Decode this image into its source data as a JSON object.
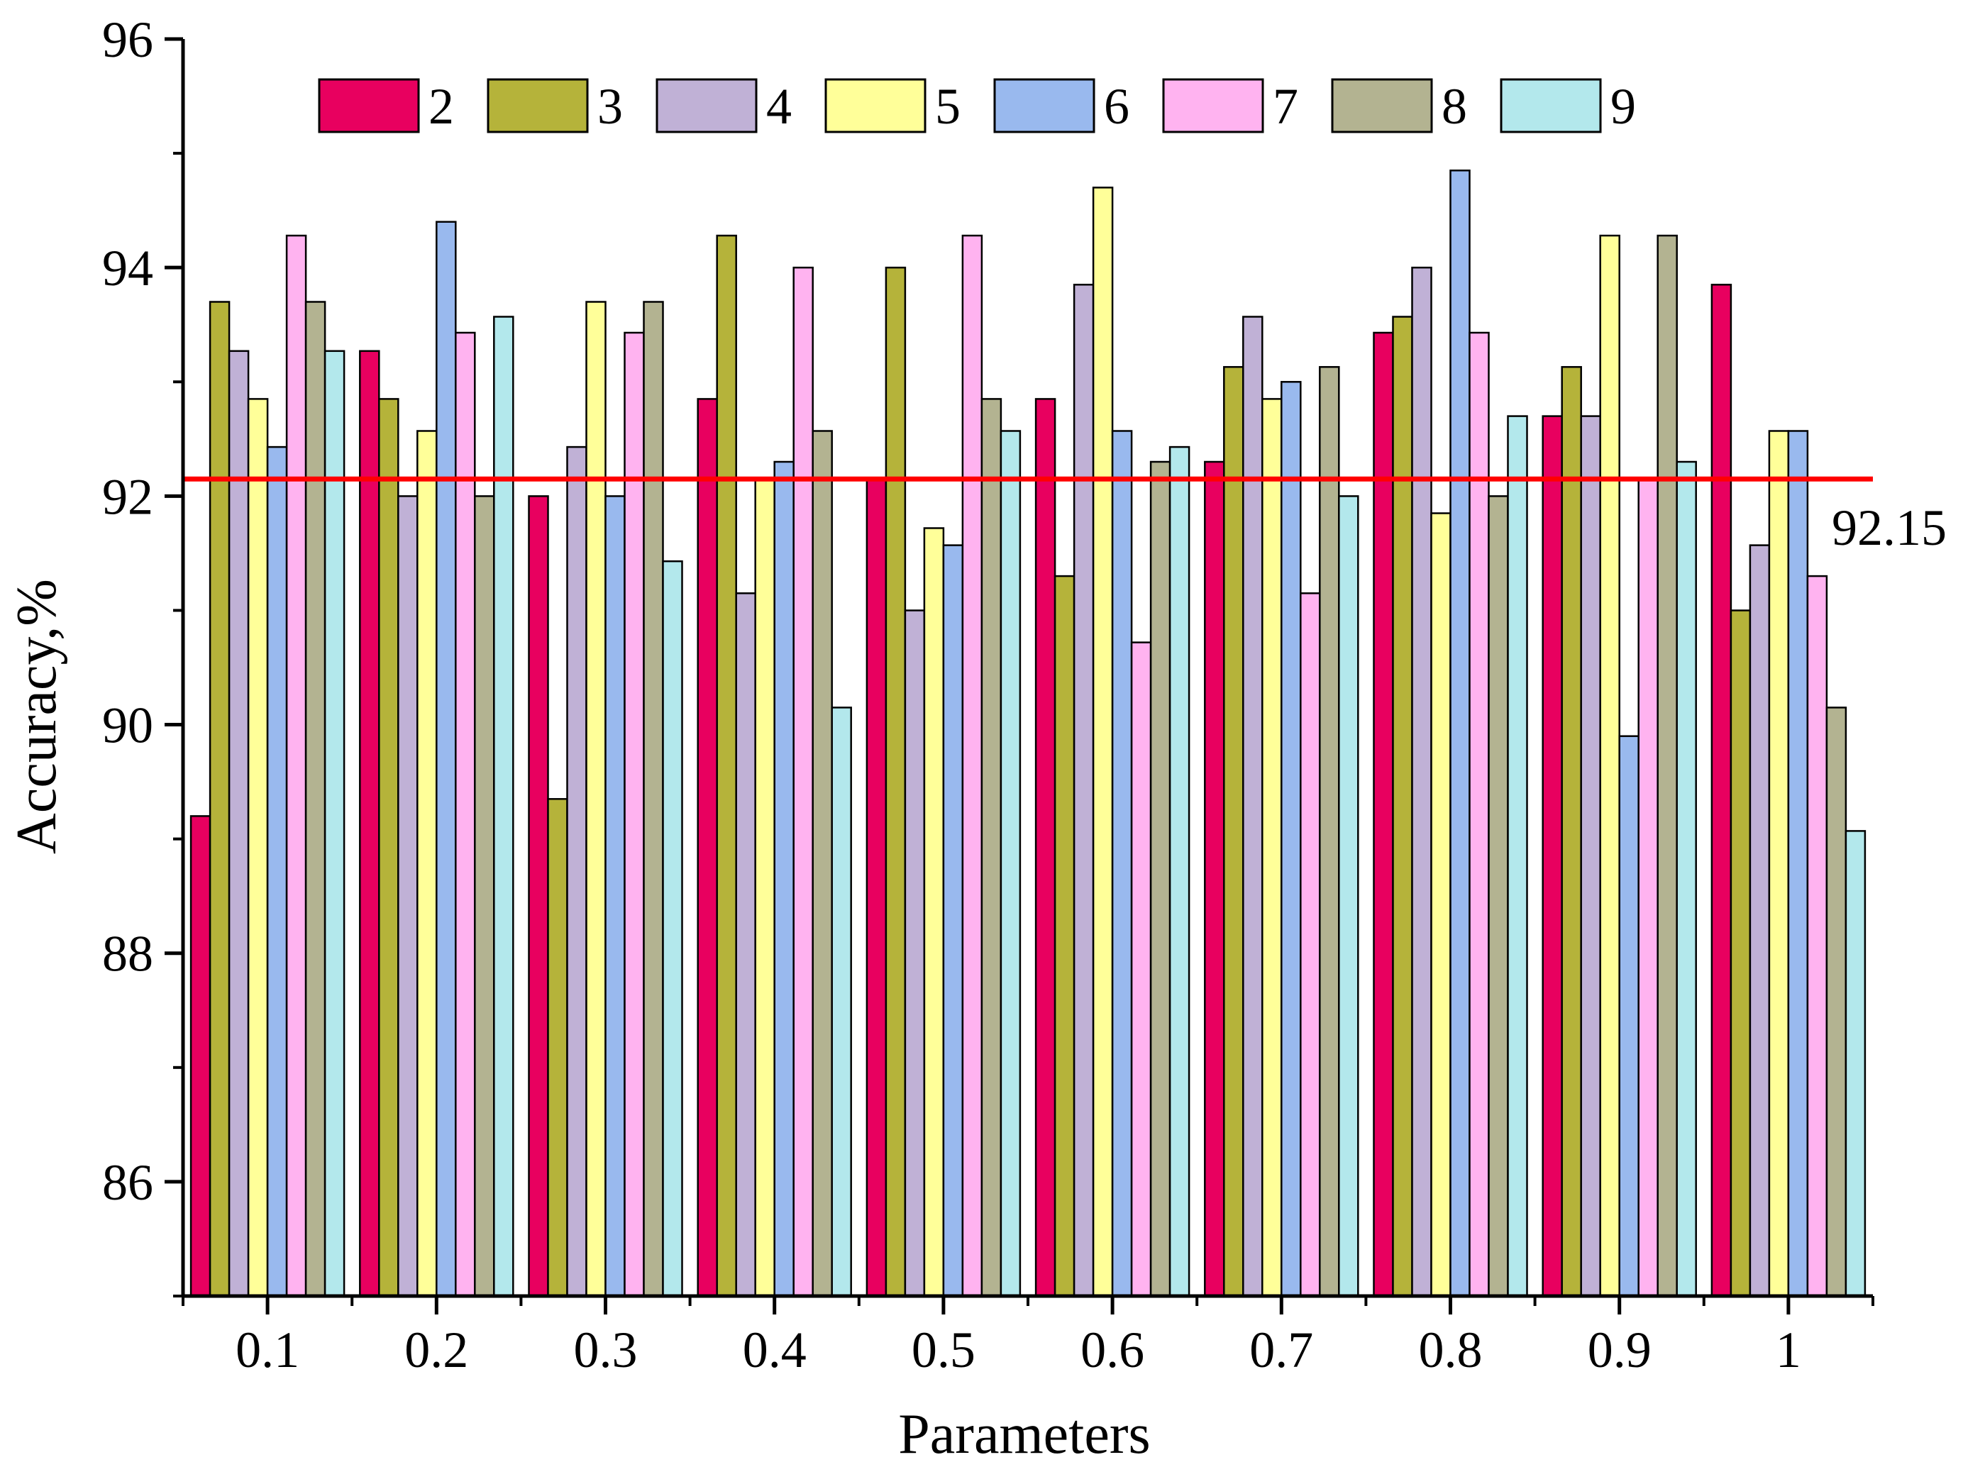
{
  "chart_data": {
    "type": "bar",
    "title": "",
    "xlabel": "Parameters",
    "ylabel": "Accuracy,%",
    "ylim": [
      85,
      96
    ],
    "yticks": [
      86,
      88,
      90,
      92,
      94,
      96
    ],
    "categories": [
      "0.1",
      "0.2",
      "0.3",
      "0.4",
      "0.5",
      "0.6",
      "0.7",
      "0.8",
      "0.9",
      "1"
    ],
    "legend_position": "top",
    "series": [
      {
        "name": "2",
        "color": "#e8005f",
        "values": [
          89.2,
          93.27,
          92.0,
          92.85,
          92.15,
          92.85,
          92.3,
          93.43,
          92.7,
          93.85
        ]
      },
      {
        "name": "3",
        "color": "#b5b33a",
        "values": [
          93.7,
          92.85,
          89.35,
          94.28,
          94.0,
          91.3,
          93.13,
          93.57,
          93.13,
          91.0
        ]
      },
      {
        "name": "4",
        "color": "#c0b1d6",
        "values": [
          93.27,
          92.0,
          92.43,
          91.15,
          91.0,
          93.85,
          93.57,
          94.0,
          92.7,
          91.57
        ]
      },
      {
        "name": "5",
        "color": "#ffff99",
        "values": [
          92.85,
          92.57,
          93.7,
          92.15,
          91.72,
          94.7,
          92.85,
          91.85,
          94.28,
          92.57
        ]
      },
      {
        "name": "6",
        "color": "#99b9ee",
        "values": [
          92.43,
          94.4,
          92.0,
          92.3,
          91.57,
          92.57,
          93.0,
          94.85,
          89.9,
          92.57
        ]
      },
      {
        "name": "7",
        "color": "#ffb3f0",
        "values": [
          94.28,
          93.43,
          93.43,
          94.0,
          94.28,
          90.72,
          91.15,
          93.43,
          92.15,
          91.3
        ]
      },
      {
        "name": "8",
        "color": "#b3b391",
        "values": [
          93.7,
          92.0,
          93.7,
          92.57,
          92.85,
          92.3,
          93.13,
          92.0,
          94.28,
          90.15
        ]
      },
      {
        "name": "9",
        "color": "#b3e8ec",
        "values": [
          93.27,
          93.57,
          91.43,
          90.15,
          92.57,
          92.43,
          92.0,
          92.7,
          92.3,
          89.07
        ]
      }
    ],
    "reference_line": {
      "value": 92.15,
      "label": "92.15",
      "color": "#ff0000"
    }
  }
}
